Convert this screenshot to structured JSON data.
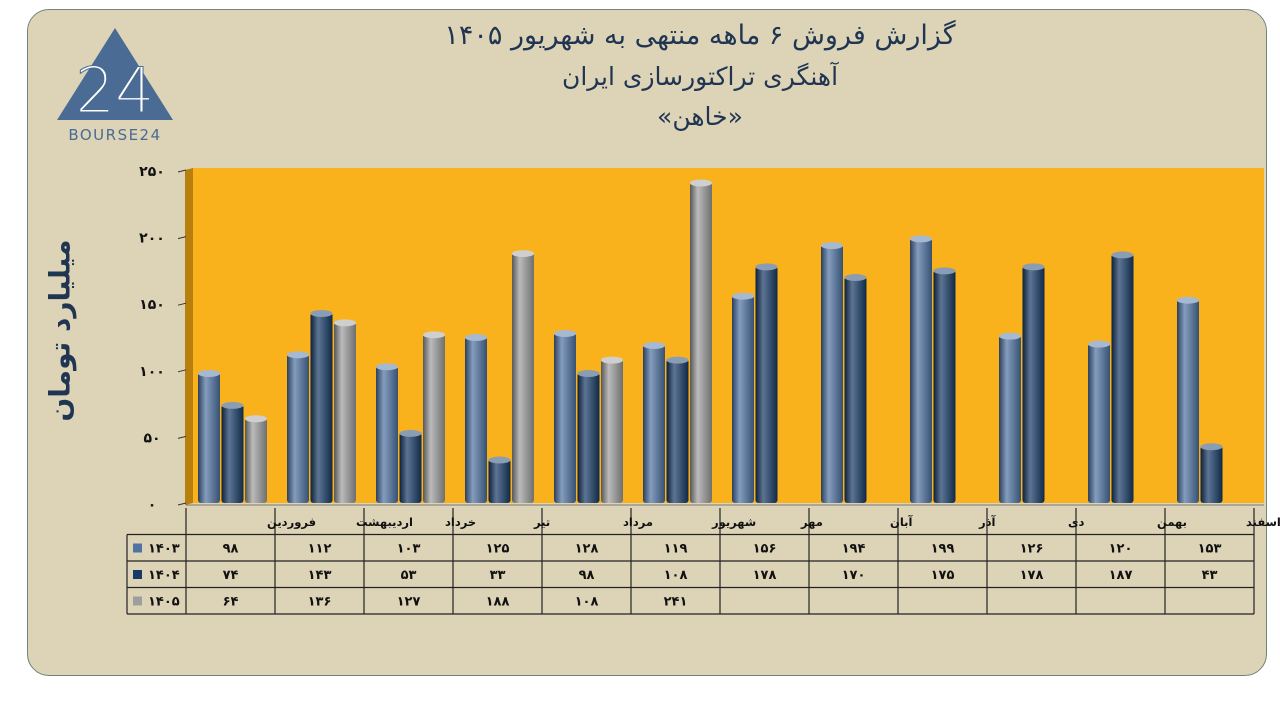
{
  "header": {
    "title_line1": "گزارش فروش ۶ ماهه منتهی به شهریور ۱۴۰۵",
    "title_line2": "آهنگری تراکتورسازی ایران",
    "title_line3": "«خاهن»"
  },
  "logo": {
    "mark": "24",
    "text": "BOURSE24",
    "color": "#4a6b93"
  },
  "chart_data": {
    "type": "bar",
    "ylabel": "میلیارد تومان",
    "ylim": [
      0,
      250
    ],
    "yticks": [
      "۰",
      "۵۰",
      "۱۰۰",
      "۱۵۰",
      "۲۰۰",
      "۲۵۰"
    ],
    "ytick_values": [
      0,
      50,
      100,
      150,
      200,
      250
    ],
    "categories": [
      "فروردین",
      "اردیبهشت",
      "خرداد",
      "تیر",
      "مرداد",
      "شهریور",
      "مهر",
      "آبان",
      "آذر",
      "دی",
      "بهمن",
      "اسفند"
    ],
    "series": [
      {
        "name": "۱۴۰۳",
        "color": "#4f73a3",
        "values": [
          98,
          112,
          103,
          125,
          128,
          119,
          156,
          194,
          199,
          126,
          120,
          153
        ],
        "labels": [
          "۹۸",
          "۱۱۲",
          "۱۰۳",
          "۱۲۵",
          "۱۲۸",
          "۱۱۹",
          "۱۵۶",
          "۱۹۴",
          "۱۹۹",
          "۱۲۶",
          "۱۲۰",
          "۱۵۳"
        ]
      },
      {
        "name": "۱۴۰۴",
        "color": "#173a66",
        "values": [
          74,
          143,
          53,
          33,
          98,
          108,
          178,
          170,
          175,
          178,
          187,
          43
        ],
        "labels": [
          "۷۴",
          "۱۴۳",
          "۵۳",
          "۳۳",
          "۹۸",
          "۱۰۸",
          "۱۷۸",
          "۱۷۰",
          "۱۷۵",
          "۱۷۸",
          "۱۸۷",
          "۴۳"
        ]
      },
      {
        "name": "۱۴۰۵",
        "color": "#9e9e9e",
        "values": [
          64,
          136,
          127,
          188,
          108,
          241,
          null,
          null,
          null,
          null,
          null,
          null
        ],
        "labels": [
          "۶۴",
          "۱۳۶",
          "۱۲۷",
          "۱۸۸",
          "۱۰۸",
          "۲۴۱",
          "",
          "",
          "",
          "",
          "",
          ""
        ]
      }
    ],
    "plot_background": "#f9b21b",
    "grid": false,
    "legend": "data-table"
  }
}
